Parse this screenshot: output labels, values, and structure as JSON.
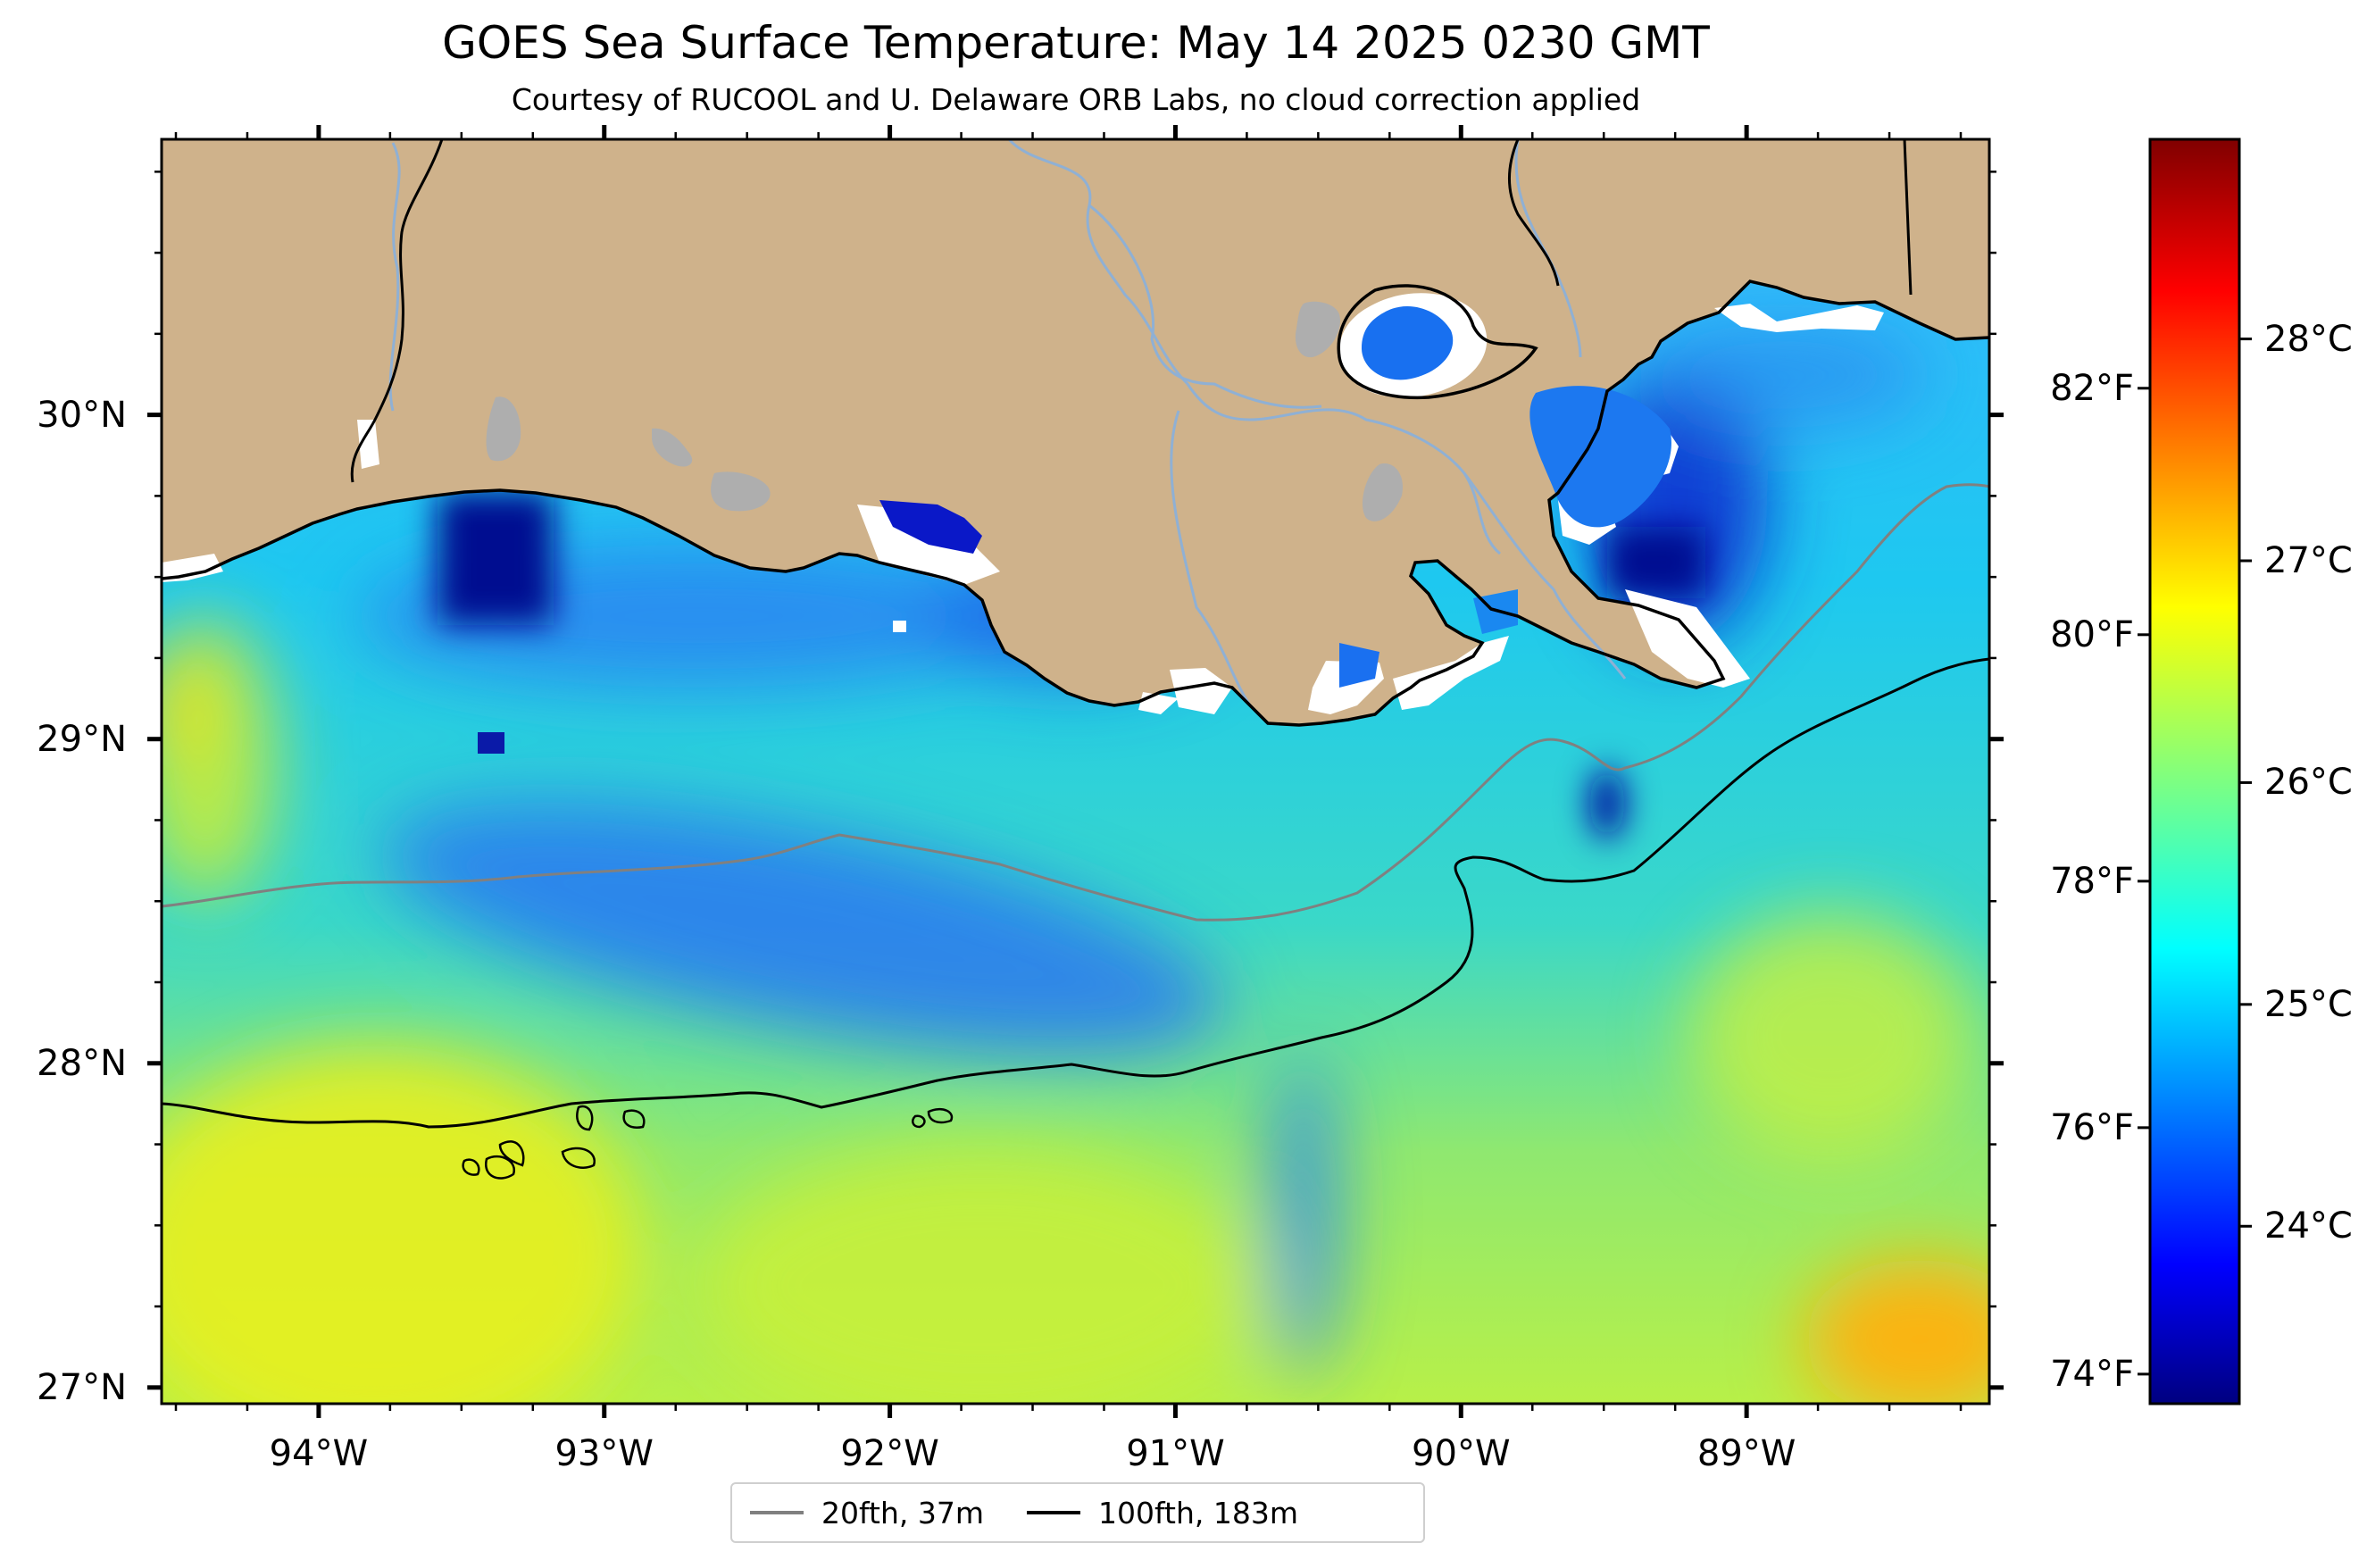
{
  "header": {
    "title": "GOES Sea Surface Temperature: May 14 2025 0230 GMT",
    "subtitle": "Courtesy of RUCOOL and U. Delaware ORB Labs, no cloud correction applied"
  },
  "map": {
    "lon_range": [
      -94.55,
      -88.15
    ],
    "lat_range": [
      26.95,
      30.85
    ],
    "lon_ticks": [
      {
        "value": -94,
        "label": "94°W"
      },
      {
        "value": -93,
        "label": "93°W"
      },
      {
        "value": -92,
        "label": "92°W"
      },
      {
        "value": -91,
        "label": "91°W"
      },
      {
        "value": -90,
        "label": "90°W"
      },
      {
        "value": -89,
        "label": "89°W"
      }
    ],
    "lat_ticks": [
      {
        "value": 30,
        "label": "30°N"
      },
      {
        "value": 29,
        "label": "29°N"
      },
      {
        "value": 28,
        "label": "28°N"
      },
      {
        "value": 27,
        "label": "27°N"
      }
    ],
    "colors": {
      "land": "#cfb28b",
      "lakes": "#aeaeae",
      "rivers": "#8fb0d4",
      "cloud_gap": "#ffffff"
    }
  },
  "colorbar": {
    "celsius_range": [
      23.2,
      28.9
    ],
    "celsius_ticks": [
      {
        "value": 24,
        "label": "24°C"
      },
      {
        "value": 25,
        "label": "25°C"
      },
      {
        "value": 26,
        "label": "26°C"
      },
      {
        "value": 27,
        "label": "27°C"
      },
      {
        "value": 28,
        "label": "28°C"
      }
    ],
    "fahrenheit_ticks": [
      {
        "value": 74,
        "label": "74°F"
      },
      {
        "value": 76,
        "label": "76°F"
      },
      {
        "value": 78,
        "label": "78°F"
      },
      {
        "value": 80,
        "label": "80°F"
      },
      {
        "value": 82,
        "label": "82°F"
      }
    ],
    "colormap": "jet"
  },
  "legend": {
    "items": [
      {
        "label": "20fth, 37m",
        "color": "#808080"
      },
      {
        "label": "100fth, 183m",
        "color": "#000000"
      }
    ]
  }
}
